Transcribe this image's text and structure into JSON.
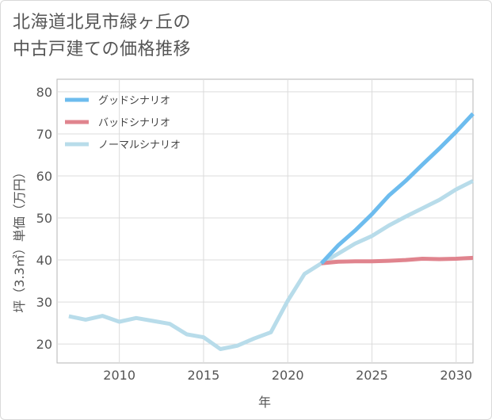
{
  "title": {
    "line1": "北海道北見市緑ヶ丘の",
    "line2": "中古戸建ての価格推移"
  },
  "chart_data": {
    "type": "line",
    "xlabel": "年",
    "ylabel": "坪（3.3㎡）単価（万円）",
    "xlim": [
      2006.3,
      2031
    ],
    "ylim": [
      15.5,
      83
    ],
    "x_ticks": [
      2010,
      2015,
      2020,
      2025,
      2030
    ],
    "y_ticks": [
      20,
      30,
      40,
      50,
      60,
      70,
      80
    ],
    "grid": true,
    "legend_position": "top-left",
    "series": [
      {
        "name": "グッドシナリオ",
        "color": "#6dbcee",
        "x": [
          2022,
          2023,
          2024,
          2025,
          2026,
          2027,
          2028,
          2029,
          2030,
          2031
        ],
        "values": [
          39.2,
          43.5,
          47.0,
          50.9,
          55.3,
          58.8,
          62.7,
          66.5,
          70.5,
          74.8
        ]
      },
      {
        "name": "バッドシナリオ",
        "color": "#e0848e",
        "x": [
          2022,
          2023,
          2024,
          2025,
          2026,
          2027,
          2028,
          2029,
          2030,
          2031
        ],
        "values": [
          39.2,
          39.6,
          39.7,
          39.7,
          39.8,
          40.0,
          40.3,
          40.2,
          40.3,
          40.5
        ]
      },
      {
        "name": "ノーマルシナリオ",
        "color": "#b8dcea",
        "x": [
          2007,
          2008,
          2009,
          2010,
          2011,
          2012,
          2013,
          2014,
          2015,
          2016,
          2017,
          2018,
          2019,
          2020,
          2021,
          2022,
          2023,
          2024,
          2025,
          2026,
          2027,
          2028,
          2029,
          2030,
          2031
        ],
        "values": [
          26.6,
          25.8,
          26.7,
          25.3,
          26.2,
          25.5,
          24.8,
          22.3,
          21.6,
          18.8,
          19.6,
          21.3,
          22.8,
          30.3,
          36.7,
          39.2,
          41.5,
          43.9,
          45.7,
          48.2,
          50.3,
          52.3,
          54.3,
          56.8,
          58.8
        ]
      }
    ]
  }
}
